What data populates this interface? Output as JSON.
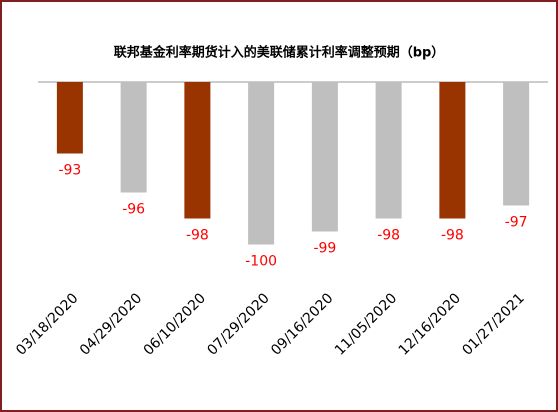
{
  "chart_data": {
    "type": "bar",
    "title": "联邦基金利率期货计入的美联储累计利率调整预期（bp）",
    "categories": [
      "03/18/2020",
      "04/29/2020",
      "06/10/2020",
      "07/29/2020",
      "09/16/2020",
      "11/05/2020",
      "12/16/2020",
      "01/27/2021"
    ],
    "values": [
      -93,
      -96,
      -98,
      -100,
      -99,
      -98,
      -98,
      -97
    ],
    "colors": [
      "#993300",
      "#bfbfbf",
      "#993300",
      "#bfbfbf",
      "#bfbfbf",
      "#bfbfbf",
      "#993300",
      "#bfbfbf"
    ],
    "label_color": "#ff0000",
    "ylim": [
      -87.5,
      -101
    ]
  }
}
